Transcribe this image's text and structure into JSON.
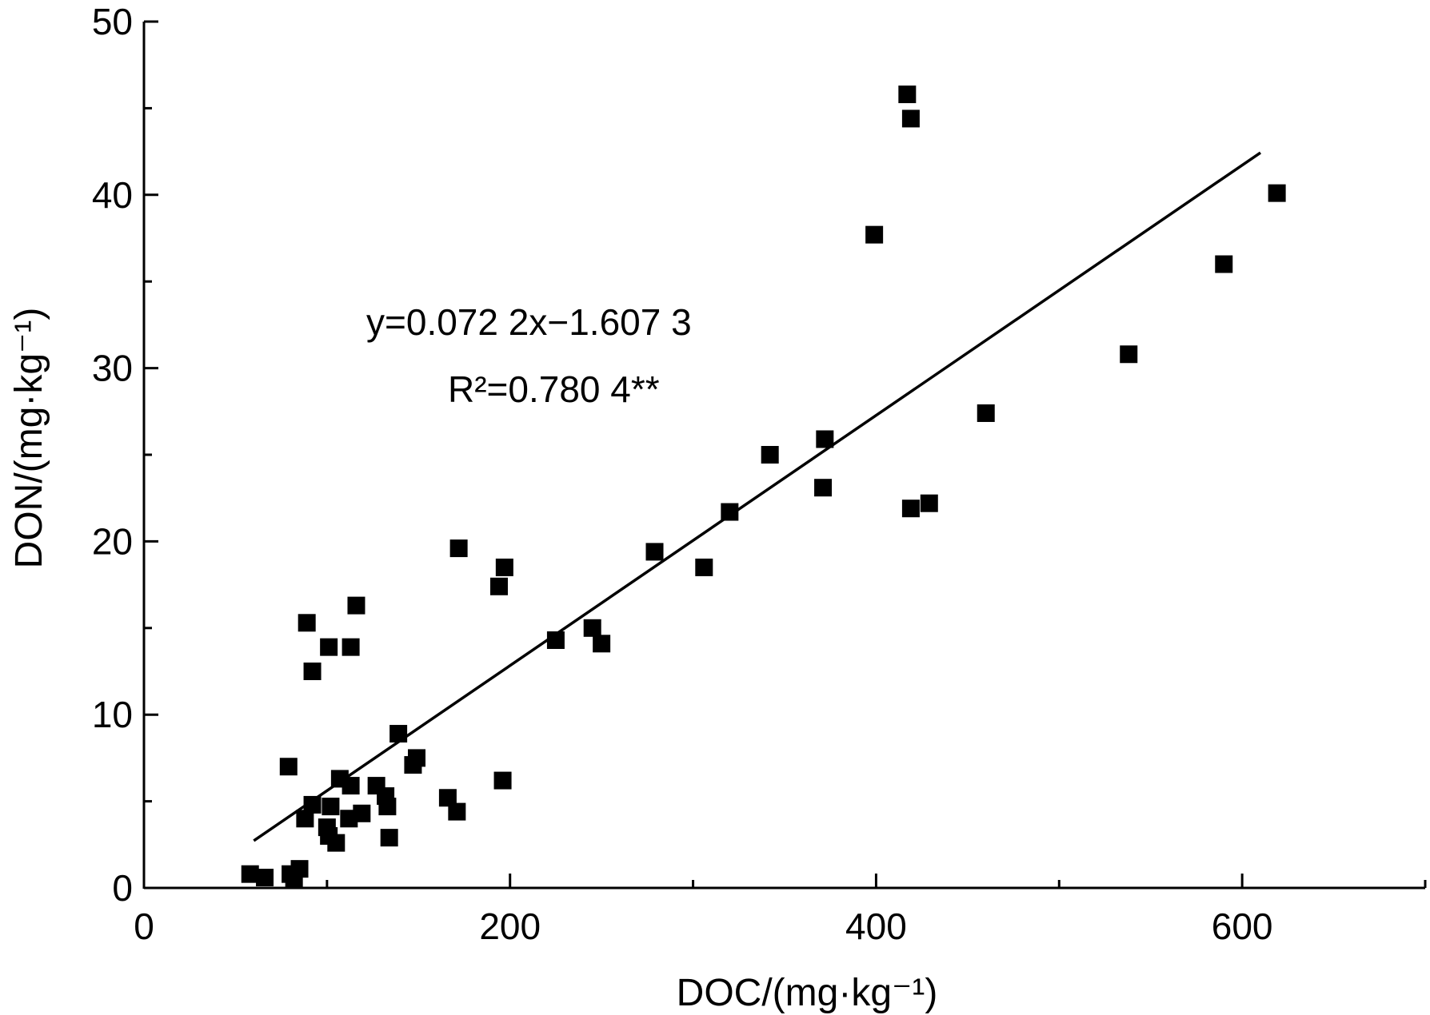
{
  "chart_data": {
    "type": "scatter",
    "xlabel": "DOC/(mg·kg⁻¹)",
    "ylabel": "DON/(mg·kg⁻¹)",
    "xlim": [
      0,
      700
    ],
    "ylim": [
      0,
      50
    ],
    "x_ticks": [
      "0",
      "200",
      "400",
      "600"
    ],
    "y_ticks": [
      "0",
      "10",
      "20",
      "30",
      "40",
      "50"
    ],
    "marker": "filled-square",
    "marker_color": "#000000",
    "fit_line": {
      "slope": 0.0722,
      "intercept": -1.6073,
      "x_range": [
        60,
        610
      ]
    },
    "annotation": {
      "equation_line": "y=0.072 2x−1.607 3",
      "r2_line": "R²=0.780 4**"
    },
    "points": [
      [
        58,
        0.8
      ],
      [
        66,
        0.6
      ],
      [
        80,
        0.8
      ],
      [
        82,
        0.5
      ],
      [
        85,
        1.1
      ],
      [
        79,
        7.0
      ],
      [
        88,
        4.0
      ],
      [
        92,
        4.8
      ],
      [
        100,
        3.5
      ],
      [
        101,
        3.0
      ],
      [
        102,
        4.7
      ],
      [
        105,
        2.6
      ],
      [
        107,
        6.3
      ],
      [
        112,
        4.0
      ],
      [
        113,
        5.9
      ],
      [
        119,
        4.3
      ],
      [
        127,
        5.9
      ],
      [
        132,
        5.3
      ],
      [
        133,
        4.7
      ],
      [
        134,
        2.9
      ],
      [
        139,
        8.9
      ],
      [
        147,
        7.1
      ],
      [
        149,
        7.5
      ],
      [
        166,
        5.2
      ],
      [
        171,
        4.4
      ],
      [
        196,
        6.2
      ],
      [
        89,
        15.3
      ],
      [
        92,
        12.5
      ],
      [
        101,
        13.9
      ],
      [
        113,
        13.9
      ],
      [
        116,
        16.3
      ],
      [
        172,
        19.6
      ],
      [
        194,
        17.4
      ],
      [
        197,
        18.5
      ],
      [
        225,
        14.3
      ],
      [
        245,
        15.0
      ],
      [
        250,
        14.1
      ],
      [
        279,
        19.4
      ],
      [
        306,
        18.5
      ],
      [
        320,
        21.7
      ],
      [
        342,
        25.0
      ],
      [
        372,
        25.9
      ],
      [
        371,
        23.1
      ],
      [
        399,
        37.7
      ],
      [
        417,
        45.8
      ],
      [
        419,
        44.4
      ],
      [
        419,
        21.9
      ],
      [
        429,
        22.2
      ],
      [
        460,
        27.4
      ],
      [
        538,
        30.8
      ],
      [
        590,
        36.0
      ],
      [
        619,
        40.1
      ]
    ]
  }
}
